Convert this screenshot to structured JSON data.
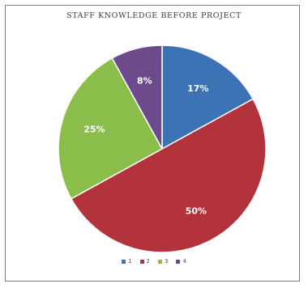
{
  "chart_data": {
    "type": "pie",
    "title": "STAFF KNOWLEDGE BEFORE PROJECT",
    "categories": [
      "1",
      "2",
      "3",
      "4"
    ],
    "values": [
      17,
      50,
      25,
      8
    ],
    "data_labels": [
      "17%",
      "50%",
      "25%",
      "8%"
    ],
    "colors": [
      "#3b73b5",
      "#b2333c",
      "#8bbd4a",
      "#6d4a8c"
    ],
    "legend_position": "bottom",
    "start_angle_deg": 0,
    "direction": "clockwise"
  }
}
